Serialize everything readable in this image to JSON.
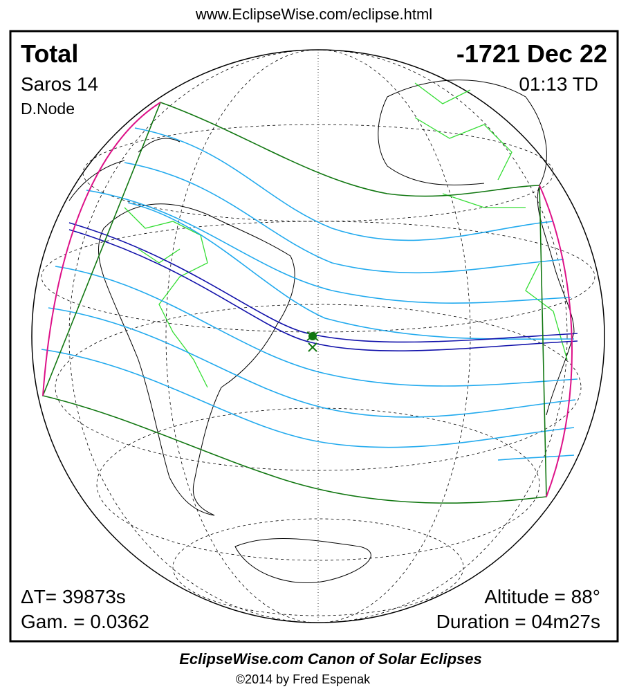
{
  "header": {
    "url": "www.EclipseWise.com/eclipse.html"
  },
  "eclipse": {
    "type": "Total",
    "date": "-1721 Dec 22",
    "saros": "Saros  14",
    "time": "01:13 TD",
    "node": "D.Node",
    "delta_t": "ΔT=  39873s",
    "gamma": "Gam. = 0.0362",
    "altitude": "Altitude = 88°",
    "duration": "Duration = 04m27s"
  },
  "footer": {
    "title": "EclipseWise.com Canon of Solar Eclipses",
    "copyright": "©2014 by Fred Espenak"
  }
}
